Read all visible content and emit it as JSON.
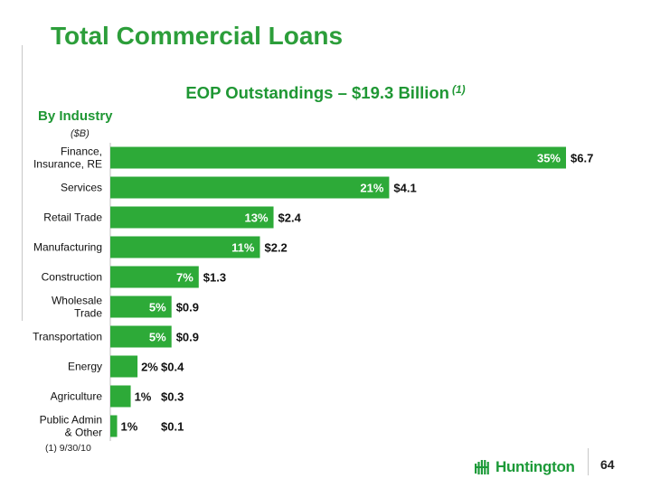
{
  "slide": {
    "title": "Total Commercial Loans",
    "subtitle": "EOP Outstandings – $19.3 Billion",
    "subtitle_note": "(1)",
    "section_label": "By Industry",
    "unit_label": "($B)",
    "footnote": "(1)  9/30/10",
    "page_number": "64"
  },
  "logo": {
    "text": "Huntington",
    "icon": "huntington-logo-icon",
    "color": "#1c9a38"
  },
  "colors": {
    "accent": "#2c9e3a",
    "bar": "#2daa38"
  },
  "chart_data": {
    "type": "bar",
    "orientation": "horizontal",
    "categories": [
      "Finance, Insurance, RE",
      "Services",
      "Retail Trade",
      "Manufacturing",
      "Construction",
      "Wholesale Trade",
      "Transportation",
      "Energy",
      "Agriculture",
      "Public Admin & Other"
    ],
    "category_lines": [
      [
        "Finance,",
        "Insurance, RE"
      ],
      [
        "Services"
      ],
      [
        "Retail Trade"
      ],
      [
        "Manufacturing"
      ],
      [
        "Construction"
      ],
      [
        "Wholesale",
        "Trade"
      ],
      [
        "Transportation"
      ],
      [
        "Energy"
      ],
      [
        "Agriculture"
      ],
      [
        "Public Admin",
        "& Other"
      ]
    ],
    "series": [
      {
        "values": [
          6.7,
          4.1,
          2.4,
          2.2,
          1.3,
          0.9,
          0.9,
          0.4,
          0.3,
          0.1
        ],
        "value_labels": [
          "$6.7",
          "$4.1",
          "$2.4",
          "$2.2",
          "$1.3",
          "$0.9",
          "$0.9",
          "$0.4",
          "$0.3",
          "$0.1"
        ],
        "percent_labels": [
          "35%",
          "21%",
          "13%",
          "11%",
          "7%",
          "5%",
          "5%",
          "2%",
          "1%",
          "1%"
        ]
      }
    ],
    "xlim": [
      0,
      6.7
    ],
    "grid": false,
    "legend": "none"
  }
}
